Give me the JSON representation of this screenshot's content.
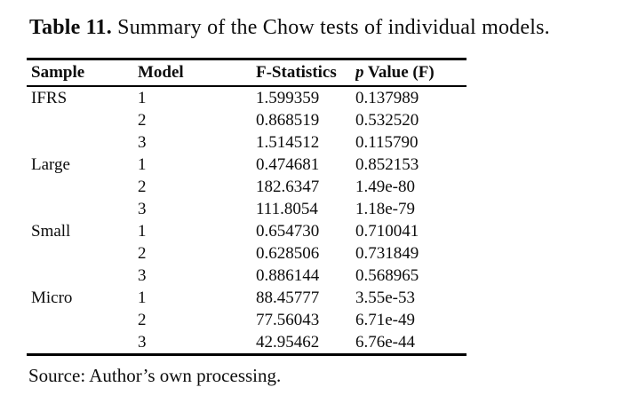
{
  "caption": {
    "label": "Table 11.",
    "text": " Summary of the Chow tests of individual models."
  },
  "table": {
    "columns": [
      {
        "label": "Sample"
      },
      {
        "label": "Model"
      },
      {
        "label": "F-Statistics"
      },
      {
        "label": "p Value (F)",
        "italic_first_word": true
      }
    ],
    "rows": [
      {
        "sample": "IFRS",
        "model": "1",
        "f_statistics": "1.599359",
        "p_value": "0.137989"
      },
      {
        "sample": "",
        "model": "2",
        "f_statistics": "0.868519",
        "p_value": "0.532520"
      },
      {
        "sample": "",
        "model": "3",
        "f_statistics": "1.514512",
        "p_value": "0.115790"
      },
      {
        "sample": "Large",
        "model": "1",
        "f_statistics": "0.474681",
        "p_value": "0.852153"
      },
      {
        "sample": "",
        "model": "2",
        "f_statistics": "182.6347",
        "p_value": "1.49e-80"
      },
      {
        "sample": "",
        "model": "3",
        "f_statistics": "111.8054",
        "p_value": "1.18e-79"
      },
      {
        "sample": "Small",
        "model": "1",
        "f_statistics": "0.654730",
        "p_value": "0.710041"
      },
      {
        "sample": "",
        "model": "2",
        "f_statistics": "0.628506",
        "p_value": "0.731849"
      },
      {
        "sample": "",
        "model": "3",
        "f_statistics": "0.886144",
        "p_value": "0.568965"
      },
      {
        "sample": "Micro",
        "model": "1",
        "f_statistics": "88.45777",
        "p_value": "3.55e-53"
      },
      {
        "sample": "",
        "model": "2",
        "f_statistics": "77.56043",
        "p_value": "6.71e-49"
      },
      {
        "sample": "",
        "model": "3",
        "f_statistics": "42.95462",
        "p_value": "6.76e-44"
      }
    ]
  },
  "source": "Source: Author’s own processing."
}
